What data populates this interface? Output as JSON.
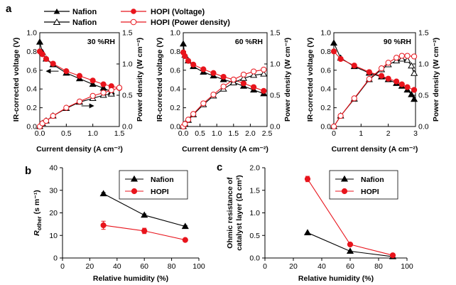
{
  "panel_labels": {
    "a": "a",
    "b": "b",
    "c": "c"
  },
  "legend_a": [
    {
      "label": "Nafion",
      "color": "#000000",
      "marker": "filled-triangle"
    },
    {
      "label": "Nafion",
      "color": "#000000",
      "marker": "open-triangle"
    },
    {
      "label": "HOPI (Voltage)",
      "color": "#e8141c",
      "marker": "filled-circle"
    },
    {
      "label": "HOPI (Power density)",
      "color": "#e8141c",
      "marker": "open-circle"
    }
  ],
  "colors": {
    "nafion": "#000000",
    "hopi": "#e8141c"
  },
  "chart_data": [
    {
      "id": "a1",
      "type": "line",
      "annotation": "30 %RH",
      "xlabel": "Current density (A cm⁻²)",
      "ylabel_left": "IR-corrected voltage (V)",
      "ylabel_right": "Power density (W cm⁻²)",
      "xlim": [
        0,
        1.5
      ],
      "xticks": [
        "0.0",
        "0.5",
        "1.0",
        "1.5"
      ],
      "ylim_left": [
        0,
        1.0
      ],
      "yticks_left": [
        "0.0",
        "0.2",
        "0.4",
        "0.6",
        "0.8",
        "1.0"
      ],
      "ylim_right": [
        0,
        1.5
      ],
      "yticks_right": [
        "0.0",
        "0.5",
        "1.0",
        "1.5"
      ],
      "series": [
        {
          "name": "Nafion voltage",
          "axis": "left",
          "marker": "filled-triangle",
          "color": "#000000",
          "x": [
            0.0,
            0.05,
            0.12,
            0.25,
            0.5,
            0.75,
            1.0,
            1.2,
            1.35
          ],
          "y": [
            0.9,
            0.79,
            0.72,
            0.66,
            0.57,
            0.51,
            0.45,
            0.41,
            0.37
          ]
        },
        {
          "name": "HOPI voltage",
          "axis": "left",
          "marker": "filled-circle",
          "color": "#e8141c",
          "x": [
            0.0,
            0.05,
            0.12,
            0.25,
            0.5,
            0.75,
            1.0,
            1.2,
            1.35,
            1.5
          ],
          "y": [
            0.8,
            0.77,
            0.72,
            0.67,
            0.59,
            0.54,
            0.49,
            0.45,
            0.43,
            0.41
          ]
        },
        {
          "name": "Nafion power density",
          "axis": "right",
          "marker": "open-triangle",
          "color": "#000000",
          "x": [
            0.0,
            0.05,
            0.12,
            0.25,
            0.5,
            0.75,
            1.0,
            1.2,
            1.35
          ],
          "y": [
            0.0,
            0.05,
            0.09,
            0.17,
            0.29,
            0.39,
            0.45,
            0.5,
            0.52
          ]
        },
        {
          "name": "HOPI power density",
          "axis": "right",
          "marker": "open-circle",
          "color": "#e8141c",
          "x": [
            0.0,
            0.05,
            0.12,
            0.25,
            0.5,
            0.75,
            1.0,
            1.2,
            1.35,
            1.5
          ],
          "y": [
            0.0,
            0.05,
            0.09,
            0.17,
            0.3,
            0.4,
            0.49,
            0.54,
            0.58,
            0.62
          ]
        }
      ],
      "arrows": [
        {
          "direction": "left",
          "x": 0.14,
          "y_left": 0.59
        },
        {
          "direction": "right",
          "x": 1.0,
          "y_left": 0.22
        }
      ]
    },
    {
      "id": "a2",
      "type": "line",
      "annotation": "60 %RH",
      "xlabel": "Current density (A cm⁻²)",
      "ylabel_left": "IR-corrected voltage (V)",
      "ylabel_right": "Power density (W cm⁻²)",
      "xlim": [
        0,
        2.5
      ],
      "xticks": [
        "0.0",
        "0.5",
        "1.0",
        "1.5",
        "2.0",
        "2.5"
      ],
      "ylim_left": [
        0,
        1.0
      ],
      "yticks_left": [
        "0.0",
        "0.2",
        "0.4",
        "0.6",
        "0.8",
        "1.0"
      ],
      "ylim_right": [
        0,
        1.5
      ],
      "yticks_right": [
        "0.0",
        "0.5",
        "1.0",
        "1.5"
      ],
      "series": [
        {
          "name": "Nafion voltage",
          "axis": "left",
          "marker": "filled-triangle",
          "color": "#000000",
          "x": [
            0.0,
            0.05,
            0.15,
            0.3,
            0.6,
            0.9,
            1.2,
            1.5,
            1.8,
            2.1,
            2.4
          ],
          "y": [
            0.88,
            0.76,
            0.7,
            0.64,
            0.58,
            0.54,
            0.5,
            0.47,
            0.43,
            0.39,
            0.35
          ]
        },
        {
          "name": "HOPI voltage",
          "axis": "left",
          "marker": "filled-circle",
          "color": "#e8141c",
          "x": [
            0.0,
            0.05,
            0.15,
            0.3,
            0.6,
            0.9,
            1.2,
            1.5,
            1.8,
            2.1,
            2.4
          ],
          "y": [
            0.79,
            0.75,
            0.7,
            0.66,
            0.61,
            0.57,
            0.53,
            0.5,
            0.46,
            0.42,
            0.38
          ]
        },
        {
          "name": "Nafion power density",
          "axis": "right",
          "marker": "open-triangle",
          "color": "#000000",
          "x": [
            0.0,
            0.05,
            0.15,
            0.3,
            0.6,
            0.9,
            1.2,
            1.5,
            1.8,
            2.1,
            2.4
          ],
          "y": [
            0.0,
            0.04,
            0.1,
            0.19,
            0.35,
            0.49,
            0.6,
            0.7,
            0.77,
            0.82,
            0.84
          ]
        },
        {
          "name": "HOPI power density",
          "axis": "right",
          "marker": "open-circle",
          "color": "#e8141c",
          "x": [
            0.0,
            0.05,
            0.15,
            0.3,
            0.6,
            0.9,
            1.2,
            1.5,
            1.8,
            2.1,
            2.4
          ],
          "y": [
            0.0,
            0.04,
            0.11,
            0.2,
            0.37,
            0.51,
            0.64,
            0.75,
            0.83,
            0.88,
            0.91
          ]
        }
      ]
    },
    {
      "id": "a3",
      "type": "line",
      "annotation": "90 %RH",
      "xlabel": "Current density (A cm⁻²)",
      "ylabel_left": "IR-corrected voltage (V)",
      "ylabel_right": "Power density (W cm⁻²)",
      "xlim": [
        0,
        3
      ],
      "xticks": [
        "0",
        "1",
        "2",
        "3"
      ],
      "ylim_left": [
        0,
        1.0
      ],
      "yticks_left": [
        "0.0",
        "0.2",
        "0.4",
        "0.6",
        "0.8",
        "1.0"
      ],
      "ylim_right": [
        0,
        1.5
      ],
      "yticks_right": [
        "0.0",
        "0.5",
        "1.0",
        "1.5"
      ],
      "series": [
        {
          "name": "Nafion voltage",
          "axis": "left",
          "marker": "filled-triangle",
          "color": "#000000",
          "x": [
            0.0,
            0.25,
            0.75,
            1.3,
            1.75,
            2.0,
            2.3,
            2.5,
            2.7,
            2.85,
            2.95
          ],
          "y": [
            0.89,
            0.73,
            0.64,
            0.57,
            0.53,
            0.5,
            0.46,
            0.43,
            0.39,
            0.34,
            0.29
          ]
        },
        {
          "name": "HOPI voltage",
          "axis": "left",
          "marker": "filled-circle",
          "color": "#e8141c",
          "x": [
            0.0,
            0.25,
            0.75,
            1.3,
            1.75,
            2.0,
            2.3,
            2.5,
            2.7,
            2.95
          ],
          "y": [
            0.8,
            0.72,
            0.65,
            0.58,
            0.54,
            0.51,
            0.48,
            0.45,
            0.42,
            0.39
          ]
        },
        {
          "name": "Nafion power density",
          "axis": "right",
          "marker": "open-triangle",
          "color": "#000000",
          "x": [
            0.0,
            0.25,
            0.75,
            1.3,
            1.75,
            2.0,
            2.3,
            2.5,
            2.7,
            2.85,
            2.95
          ],
          "y": [
            0.0,
            0.17,
            0.44,
            0.75,
            0.91,
            0.99,
            1.05,
            1.08,
            1.06,
            0.97,
            0.85
          ]
        },
        {
          "name": "HOPI power density",
          "axis": "right",
          "marker": "open-circle",
          "color": "#e8141c",
          "x": [
            0.0,
            0.25,
            0.75,
            1.3,
            1.75,
            2.0,
            2.3,
            2.5,
            2.7,
            2.95
          ],
          "y": [
            0.0,
            0.17,
            0.45,
            0.76,
            0.93,
            1.02,
            1.1,
            1.13,
            1.13,
            1.12
          ]
        }
      ]
    },
    {
      "id": "b",
      "type": "line",
      "xlabel": "Relative humidity (%)",
      "ylabel": "R_other (s m⁻¹)",
      "ylabel_main": "R",
      "ylabel_sub": "other",
      "ylabel_unit": " (s m⁻¹)",
      "xlim": [
        0,
        100
      ],
      "xticks": [
        "0",
        "20",
        "40",
        "60",
        "80",
        "100"
      ],
      "ylim": [
        0,
        40
      ],
      "yticks": [
        "0",
        "10",
        "20",
        "30",
        "40"
      ],
      "legend": [
        "Nafion",
        "HOPI"
      ],
      "series": [
        {
          "name": "Nafion",
          "marker": "filled-triangle",
          "color": "#000000",
          "x": [
            30,
            60,
            90
          ],
          "y": [
            28.5,
            19,
            14
          ],
          "err": [
            0.5,
            0.5,
            0.4
          ]
        },
        {
          "name": "HOPI",
          "marker": "filled-circle",
          "color": "#e8141c",
          "x": [
            30,
            60,
            90
          ],
          "y": [
            14.5,
            12,
            8
          ],
          "err": [
            1.8,
            1.2,
            0.5
          ]
        }
      ]
    },
    {
      "id": "c",
      "type": "line",
      "xlabel": "Relative humidity (%)",
      "ylabel_line1": "Ohmic resistance of",
      "ylabel_line2": "catalyst layer (Ω cm²)",
      "xlim": [
        0,
        100
      ],
      "xticks": [
        "0",
        "20",
        "40",
        "60",
        "80",
        "100"
      ],
      "ylim": [
        0,
        2.0
      ],
      "yticks": [
        "0.0",
        "0.5",
        "1.0",
        "1.5",
        "2.0"
      ],
      "legend": [
        "Nafion",
        "HOPI"
      ],
      "series": [
        {
          "name": "Nafion",
          "marker": "filled-triangle",
          "color": "#000000",
          "x": [
            30,
            60,
            90
          ],
          "y": [
            0.56,
            0.15,
            0.03
          ],
          "err": [
            0,
            0,
            0
          ]
        },
        {
          "name": "HOPI",
          "marker": "filled-circle",
          "color": "#e8141c",
          "x": [
            30,
            60,
            90
          ],
          "y": [
            1.75,
            0.3,
            0.06
          ],
          "err": [
            0.06,
            0.02,
            0.01
          ]
        }
      ]
    }
  ]
}
